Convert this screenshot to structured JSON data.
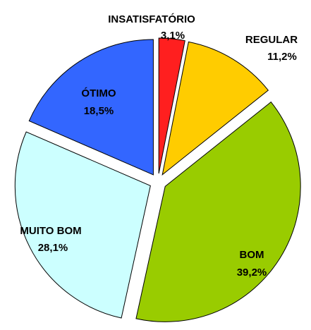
{
  "chart_data": {
    "type": "pie",
    "categories": [
      "INSATISFATÓRIO",
      "REGULAR",
      "BOM",
      "MUITO BOM",
      "ÓTIMO"
    ],
    "values": [
      3.1,
      11.2,
      39.2,
      28.1,
      18.5
    ],
    "value_labels": [
      "3,1%",
      "11,2%",
      "39,2%",
      "28,1%",
      "18,5%"
    ],
    "colors": [
      "#ff1f1f",
      "#ffcc00",
      "#99cc00",
      "#ccffff",
      "#3366ff"
    ]
  }
}
